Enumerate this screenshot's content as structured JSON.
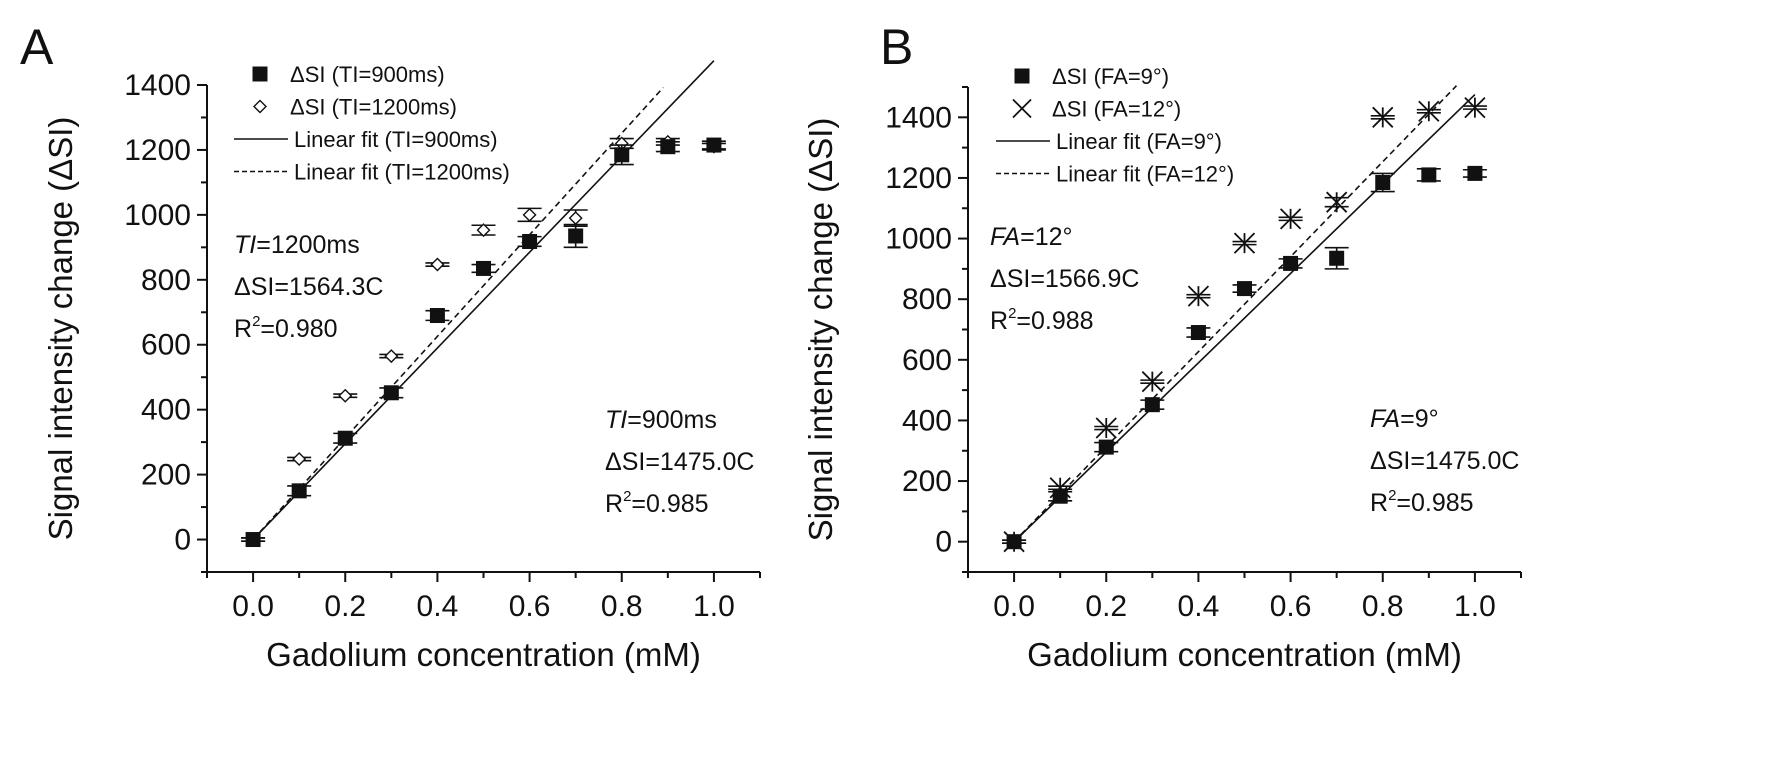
{
  "chart_data": [
    {
      "panel": "A",
      "type": "scatter",
      "xlabel": "Gadolium concentration (mM)",
      "ylabel": "Signal intensity change (ΔSI)",
      "xlim": [
        -0.1,
        1.1
      ],
      "ylim": [
        -100,
        1400
      ],
      "xticks": [
        0.0,
        0.2,
        0.4,
        0.6,
        0.8,
        1.0
      ],
      "xtick_labels": [
        "0.0",
        "0.2",
        "0.4",
        "0.6",
        "0.8",
        "1.0"
      ],
      "yticks": [
        0,
        200,
        400,
        600,
        800,
        1000,
        1200,
        1400
      ],
      "ytick_labels": [
        "0",
        "200",
        "400",
        "600",
        "800",
        "1000",
        "1200",
        "1400"
      ],
      "legend_position": "top-left",
      "series": [
        {
          "name": "ΔSI (TI=900ms)",
          "param": "TI",
          "param_value": "900ms",
          "marker": "square",
          "x": [
            0.0,
            0.1,
            0.2,
            0.3,
            0.4,
            0.5,
            0.6,
            0.7,
            0.8,
            0.9,
            1.0
          ],
          "y": [
            0,
            150,
            312,
            452,
            690,
            835,
            918,
            935,
            1185,
            1210,
            1215
          ],
          "err": [
            5,
            15,
            15,
            15,
            15,
            12,
            15,
            35,
            30,
            15,
            12
          ]
        },
        {
          "name": "ΔSI (TI=1200ms)",
          "param": "TI",
          "param_value": "1200ms",
          "marker": "diamond",
          "x": [
            0.0,
            0.1,
            0.2,
            0.3,
            0.4,
            0.5,
            0.6,
            0.7,
            0.8,
            0.9,
            1.0
          ],
          "y": [
            0,
            248,
            443,
            565,
            847,
            953,
            1000,
            990,
            1220,
            1225,
            1210
          ],
          "err": [
            5,
            5,
            5,
            5,
            5,
            15,
            20,
            25,
            15,
            10,
            10
          ]
        }
      ],
      "fits": [
        {
          "name": "Linear fit (TI=900ms)",
          "param": "TI",
          "param_value": "900ms",
          "style": "solid",
          "slope": 1475.0,
          "x_range": [
            0.0,
            1.0
          ]
        },
        {
          "name": "Linear fit (TI=1200ms)",
          "param": "TI",
          "param_value": "1200ms",
          "style": "dashed",
          "slope": 1564.3,
          "x_range": [
            0.0,
            0.89
          ]
        }
      ],
      "annotations": [
        {
          "param": "TI",
          "value_text": "=1200ms",
          "equation_lead": "ΔSI",
          "equation_tail": "=1564.3C",
          "r2_text": "R",
          "r2_sup": "2",
          "r2_value": "=0.980",
          "position": "upper-left"
        },
        {
          "param": "TI",
          "value_text": "=900ms",
          "equation_lead": "ΔSI",
          "equation_tail": "=1475.0C",
          "r2_text": "R",
          "r2_sup": "2",
          "r2_value": "=0.985",
          "position": "lower-right"
        }
      ]
    },
    {
      "panel": "B",
      "type": "scatter",
      "xlabel": "Gadolium concentration (mM)",
      "ylabel": "Signal intensity change (ΔSI)",
      "xlim": [
        -0.1,
        1.1
      ],
      "ylim": [
        -100,
        1500
      ],
      "xticks": [
        0.0,
        0.2,
        0.4,
        0.6,
        0.8,
        1.0
      ],
      "xtick_labels": [
        "0.0",
        "0.2",
        "0.4",
        "0.6",
        "0.8",
        "1.0"
      ],
      "yticks": [
        0,
        200,
        400,
        600,
        800,
        1000,
        1200,
        1400
      ],
      "ytick_labels": [
        "0",
        "200",
        "400",
        "600",
        "800",
        "1000",
        "1200",
        "1400"
      ],
      "legend_position": "top-left",
      "series": [
        {
          "name": "ΔSI (FA=9°)",
          "param": "FA",
          "param_value": "9°",
          "marker": "square",
          "x": [
            0.0,
            0.1,
            0.2,
            0.3,
            0.4,
            0.5,
            0.6,
            0.7,
            0.8,
            0.9,
            1.0
          ],
          "y": [
            0,
            150,
            312,
            452,
            690,
            835,
            918,
            935,
            1185,
            1210,
            1215
          ],
          "err": [
            5,
            15,
            15,
            15,
            15,
            12,
            15,
            35,
            30,
            20,
            12
          ]
        },
        {
          "name": "ΔSI (FA=12°)",
          "param": "FA",
          "param_value": "12°",
          "marker": "asterisk",
          "x": [
            0.0,
            0.1,
            0.2,
            0.3,
            0.4,
            0.5,
            0.6,
            0.7,
            0.8,
            0.9,
            1.0
          ],
          "y": [
            0,
            178,
            375,
            528,
            810,
            985,
            1065,
            1120,
            1400,
            1420,
            1432
          ],
          "err": [
            5,
            5,
            5,
            5,
            5,
            5,
            5,
            15,
            5,
            5,
            5
          ]
        }
      ],
      "fits": [
        {
          "name": "Linear fit (FA=9°)",
          "param": "FA",
          "param_value": "9°",
          "style": "solid",
          "slope": 1475.0,
          "x_range": [
            0.0,
            1.0
          ]
        },
        {
          "name": "Linear fit (FA=12°)",
          "param": "FA",
          "param_value": "12°",
          "style": "dashed",
          "slope": 1566.9,
          "x_range": [
            0.0,
            0.96
          ]
        }
      ],
      "annotations": [
        {
          "param": "FA",
          "value_text": "=12°",
          "equation_lead": "ΔSI",
          "equation_tail": "=1566.9C",
          "r2_text": "R",
          "r2_sup": "2",
          "r2_value": "=0.988",
          "position": "upper-left"
        },
        {
          "param": "FA",
          "value_text": "=9°",
          "equation_lead": "ΔSI",
          "equation_tail": "=1475.0C",
          "r2_text": "R",
          "r2_sup": "2",
          "r2_value": "=0.985",
          "position": "lower-right"
        }
      ]
    }
  ]
}
